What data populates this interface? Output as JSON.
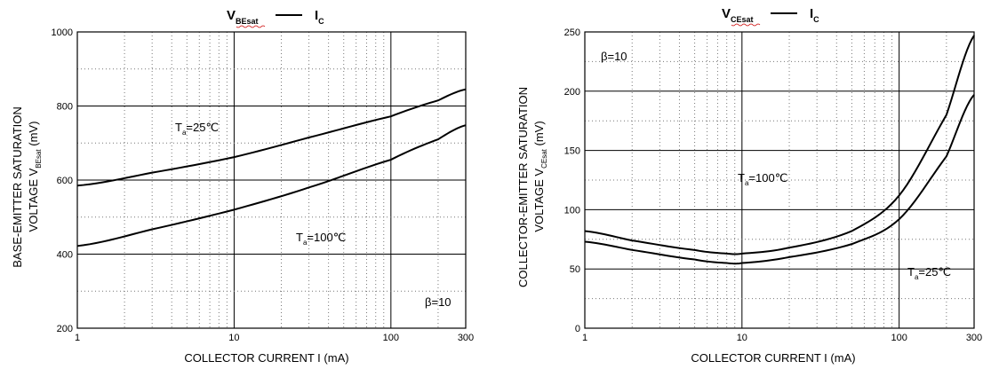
{
  "chart_data": [
    {
      "type": "line",
      "title": {
        "main": "V",
        "sub": "BEsat",
        "sep": "",
        "main2": "I",
        "sub2": "C"
      },
      "xlabel": {
        "text": "COLLECTOR CURRENT I",
        "unit": "(mA)"
      },
      "ylabel": {
        "line1": "BASE-EMITTER SATURATION",
        "line2": "VOLTAGE   V",
        "sub": "BEsat",
        "unit": "(mV)"
      },
      "x_scale": "log",
      "xlim": [
        1,
        300
      ],
      "ylim": [
        200,
        1000
      ],
      "x_ticks": [
        "1",
        "10",
        "100",
        "300"
      ],
      "y_ticks": [
        "200",
        "400",
        "600",
        "800",
        "1000"
      ],
      "grid": "major solid, minor dotted",
      "annotations": [
        {
          "text": "β=10",
          "pos": "bottom-right"
        }
      ],
      "series": [
        {
          "name": "Ta=25℃",
          "label_main": "T",
          "label_sub": "a",
          "label_rest": "=25℃",
          "x": [
            1,
            3,
            10,
            30,
            100,
            200,
            300
          ],
          "y": [
            585,
            620,
            662,
            715,
            772,
            815,
            845
          ]
        },
        {
          "name": "Ta=100℃",
          "label_main": "T",
          "label_sub": "a",
          "label_rest": "=100℃",
          "x": [
            1,
            3,
            10,
            30,
            100,
            200,
            300
          ],
          "y": [
            422,
            467,
            520,
            580,
            655,
            710,
            748
          ]
        }
      ]
    },
    {
      "type": "line",
      "title": {
        "main": "V",
        "sub": "CEsat",
        "sep": "",
        "main2": "I",
        "sub2": "C"
      },
      "xlabel": {
        "text": "COLLECTOR CURRENT I",
        "unit": "(mA)"
      },
      "ylabel": {
        "line1": "COLLECTOR-EMITTER SATURATION",
        "line2": "VOLTAGE   V",
        "sub": "CEsat",
        "unit": "(mV)"
      },
      "x_scale": "log",
      "xlim": [
        1,
        300
      ],
      "ylim": [
        0,
        250
      ],
      "x_ticks": [
        "1",
        "10",
        "100",
        "300"
      ],
      "y_ticks": [
        "0",
        "50",
        "100",
        "150",
        "200",
        "250"
      ],
      "grid": "major solid, minor dotted",
      "annotations": [
        {
          "text": "β=10",
          "pos": "top-left"
        }
      ],
      "series": [
        {
          "name": "Ta=100℃",
          "label_main": "T",
          "label_sub": "a",
          "label_rest": "=100℃",
          "x": [
            1,
            2,
            5,
            8,
            10,
            20,
            50,
            100,
            200,
            300
          ],
          "y": [
            82,
            74,
            66,
            63,
            63,
            68,
            82,
            112,
            180,
            247
          ]
        },
        {
          "name": "Ta=25℃",
          "label_main": "T",
          "label_sub": "a",
          "label_rest": "=25℃",
          "x": [
            1,
            2,
            5,
            8,
            10,
            20,
            50,
            100,
            200,
            300
          ],
          "y": [
            73,
            66,
            58,
            55,
            55,
            60,
            71,
            92,
            145,
            197
          ]
        }
      ]
    }
  ]
}
